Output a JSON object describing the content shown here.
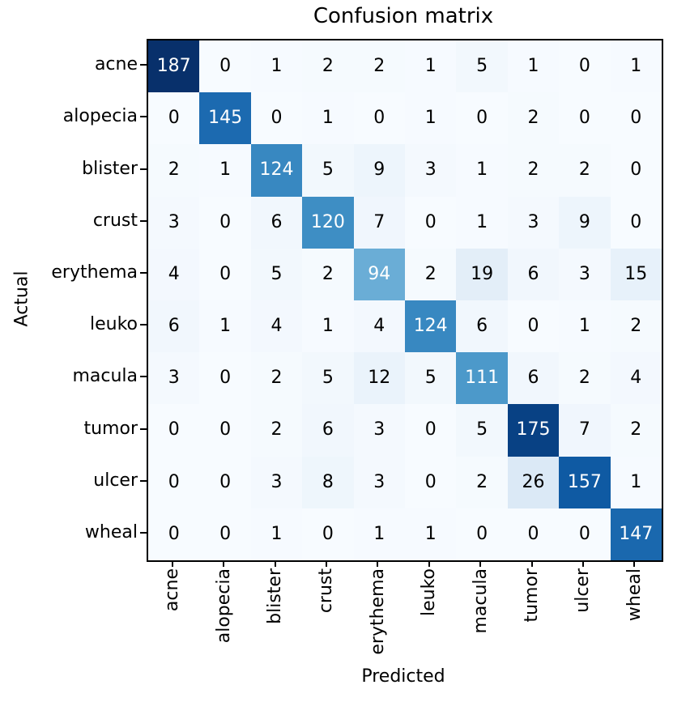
{
  "chart_data": {
    "type": "heatmap",
    "title": "Confusion matrix",
    "xlabel": "Predicted",
    "ylabel": "Actual",
    "x_tick_labels": [
      "acne",
      "alopecia",
      "blister",
      "crust",
      "erythema",
      "leuko",
      "macula",
      "tumor",
      "ulcer",
      "wheal"
    ],
    "y_tick_labels": [
      "acne",
      "alopecia",
      "blister",
      "crust",
      "erythema",
      "leuko",
      "macula",
      "tumor",
      "ulcer",
      "wheal"
    ],
    "matrix": [
      [
        187,
        0,
        1,
        2,
        2,
        1,
        5,
        1,
        0,
        1
      ],
      [
        0,
        145,
        0,
        1,
        0,
        1,
        0,
        2,
        0,
        0
      ],
      [
        2,
        1,
        124,
        5,
        9,
        3,
        1,
        2,
        2,
        0
      ],
      [
        3,
        0,
        6,
        120,
        7,
        0,
        1,
        3,
        9,
        0
      ],
      [
        4,
        0,
        5,
        2,
        94,
        2,
        19,
        6,
        3,
        15
      ],
      [
        6,
        1,
        4,
        1,
        4,
        124,
        6,
        0,
        1,
        2
      ],
      [
        3,
        0,
        2,
        5,
        12,
        5,
        111,
        6,
        2,
        4
      ],
      [
        0,
        0,
        2,
        6,
        3,
        0,
        5,
        175,
        7,
        2
      ],
      [
        0,
        0,
        3,
        8,
        3,
        0,
        2,
        26,
        157,
        1
      ],
      [
        0,
        0,
        1,
        0,
        1,
        1,
        0,
        0,
        0,
        147
      ]
    ],
    "colormap": "Blues",
    "colormap_stops": [
      "#f7fbff",
      "#deebf7",
      "#c6dbef",
      "#9ecae1",
      "#6baed6",
      "#4292c6",
      "#2171b5",
      "#08519c",
      "#08306b"
    ],
    "vmin": 0,
    "vmax": 187,
    "cell_text_color_low": "#000000",
    "cell_text_color_high": "#ffffff",
    "axis_color": "#000000",
    "legend": "none",
    "grid": "off"
  }
}
